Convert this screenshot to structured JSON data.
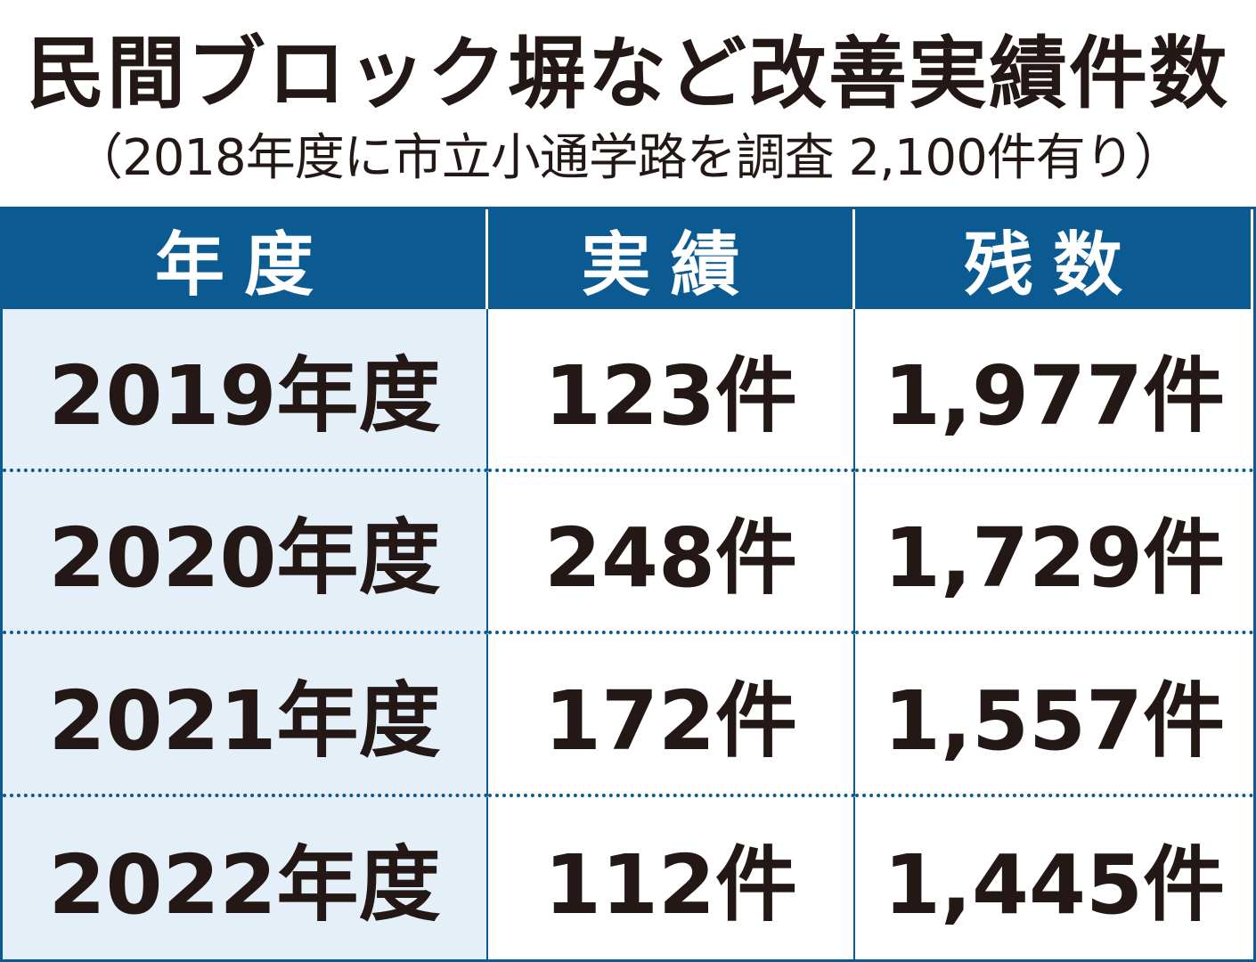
{
  "header": {
    "title": "民間ブロック塀など改善実績件数",
    "subtitle": "（2018年度に市立小通学路を調査 2,100件有り）"
  },
  "table": {
    "columns": [
      "年度",
      "実績",
      "残数"
    ],
    "rows": [
      [
        "2019年度",
        "123件",
        "1,977件"
      ],
      [
        "2020年度",
        "248件",
        "1,729件"
      ],
      [
        "2021年度",
        "172件",
        "1,557件"
      ],
      [
        "2022年度",
        "112件",
        "1,445件"
      ]
    ]
  }
}
